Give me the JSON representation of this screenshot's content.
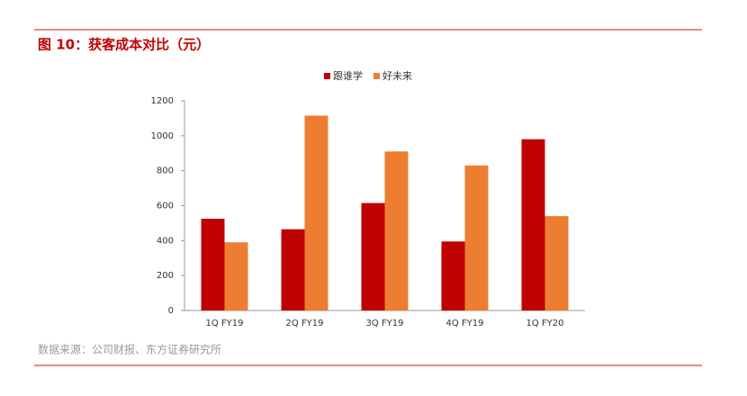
{
  "chart_data": {
    "type": "bar",
    "title": "图 10：获客成本对比（元）",
    "source": "数据来源：公司财报、东方证券研究所",
    "categories": [
      "1Q FY19",
      "2Q FY19",
      "3Q FY19",
      "4Q FY19",
      "1Q FY20"
    ],
    "series": [
      {
        "name": "跟谁学",
        "color": "#c00000",
        "values": [
          525,
          465,
          615,
          395,
          980
        ]
      },
      {
        "name": "好未来",
        "color": "#ed7d31",
        "values": [
          390,
          1115,
          910,
          830,
          540
        ]
      }
    ],
    "ylim": [
      0,
      1200
    ],
    "yticks": [
      0,
      200,
      400,
      600,
      800,
      1000,
      1200
    ],
    "grid": false,
    "legend": "top"
  }
}
